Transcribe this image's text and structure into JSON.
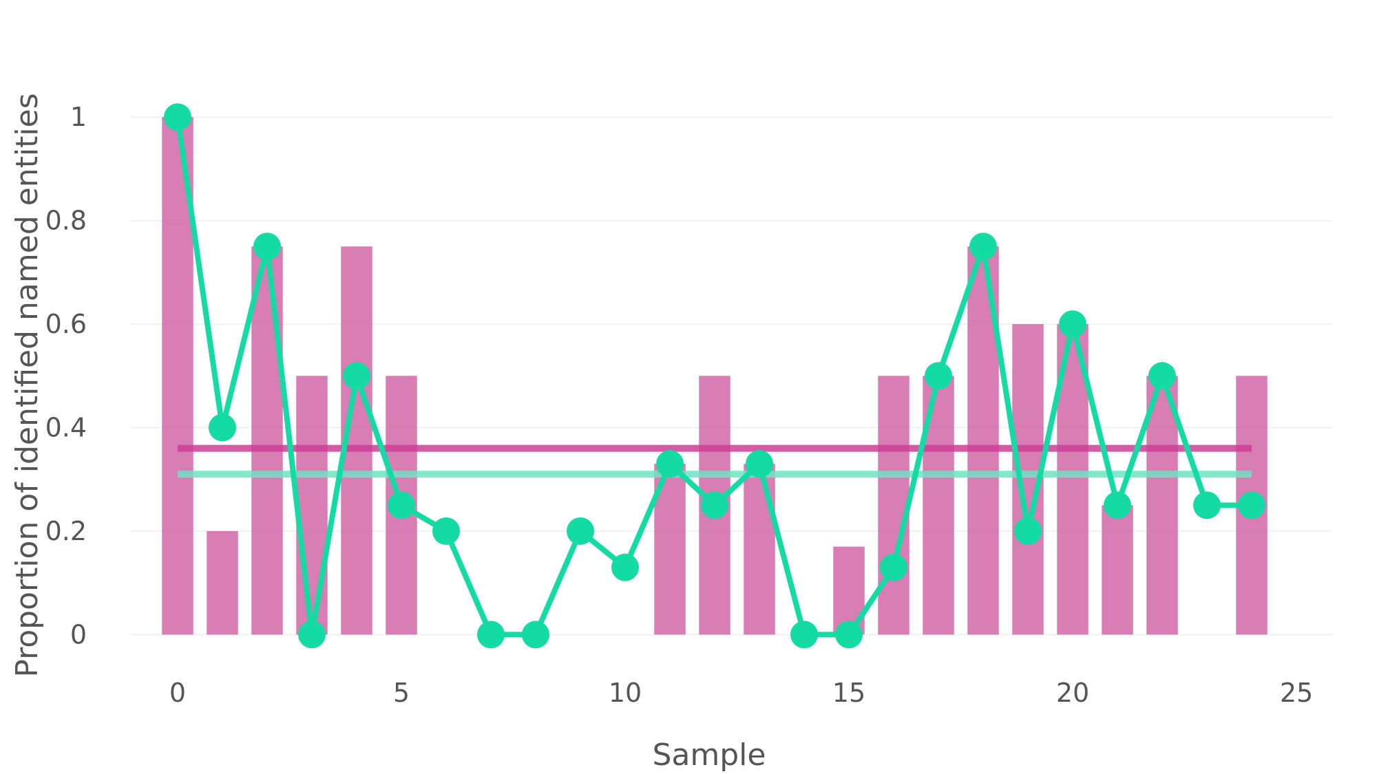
{
  "chart_data": {
    "type": "bar",
    "title": "",
    "xlabel": "Sample",
    "ylabel": "Proportion of identified named entities",
    "xlim": [
      -1.2,
      25.8
    ],
    "ylim": [
      -0.05,
      1.1
    ],
    "x_ticks": [
      0,
      5,
      10,
      15,
      20,
      25
    ],
    "y_ticks": [
      0,
      0.2,
      0.4,
      0.6,
      0.8,
      1
    ],
    "y_tick_labels": [
      "0",
      "0.2",
      "0.4",
      "0.6",
      "0.8",
      "1"
    ],
    "grid": true,
    "bars": {
      "color": "#cf5ca3",
      "x": [
        0,
        1,
        2,
        3,
        4,
        5,
        6,
        7,
        8,
        9,
        10,
        11,
        12,
        13,
        14,
        15,
        16,
        17,
        18,
        19,
        20,
        21,
        22,
        23,
        24
      ],
      "values": [
        1,
        0.2,
        0.75,
        0.5,
        0.75,
        0.5,
        0,
        0,
        0,
        0,
        0,
        0.33,
        0.5,
        0.33,
        0,
        0.17,
        0.5,
        0.5,
        0.75,
        0.6,
        0.6,
        0.25,
        0.5,
        0,
        0.5
      ]
    },
    "line": {
      "color": "#14dba4",
      "x": [
        0,
        1,
        2,
        3,
        4,
        5,
        6,
        7,
        8,
        9,
        10,
        11,
        12,
        13,
        14,
        15,
        16,
        17,
        18,
        19,
        20,
        21,
        22,
        23,
        24
      ],
      "values": [
        1,
        0.4,
        0.75,
        0,
        0.5,
        0.25,
        0.2,
        0,
        0,
        0.2,
        0.13,
        0.33,
        0.25,
        0.33,
        0,
        0,
        0.13,
        0.5,
        0.75,
        0.2,
        0.6,
        0.25,
        0.5,
        0.25,
        0.25
      ]
    },
    "mean_lines": [
      {
        "color": "#cc3d97",
        "value": 0.36,
        "x_range": [
          0,
          24
        ]
      },
      {
        "color": "#6fe2c2",
        "value": 0.31,
        "x_range": [
          0,
          24
        ]
      }
    ]
  }
}
